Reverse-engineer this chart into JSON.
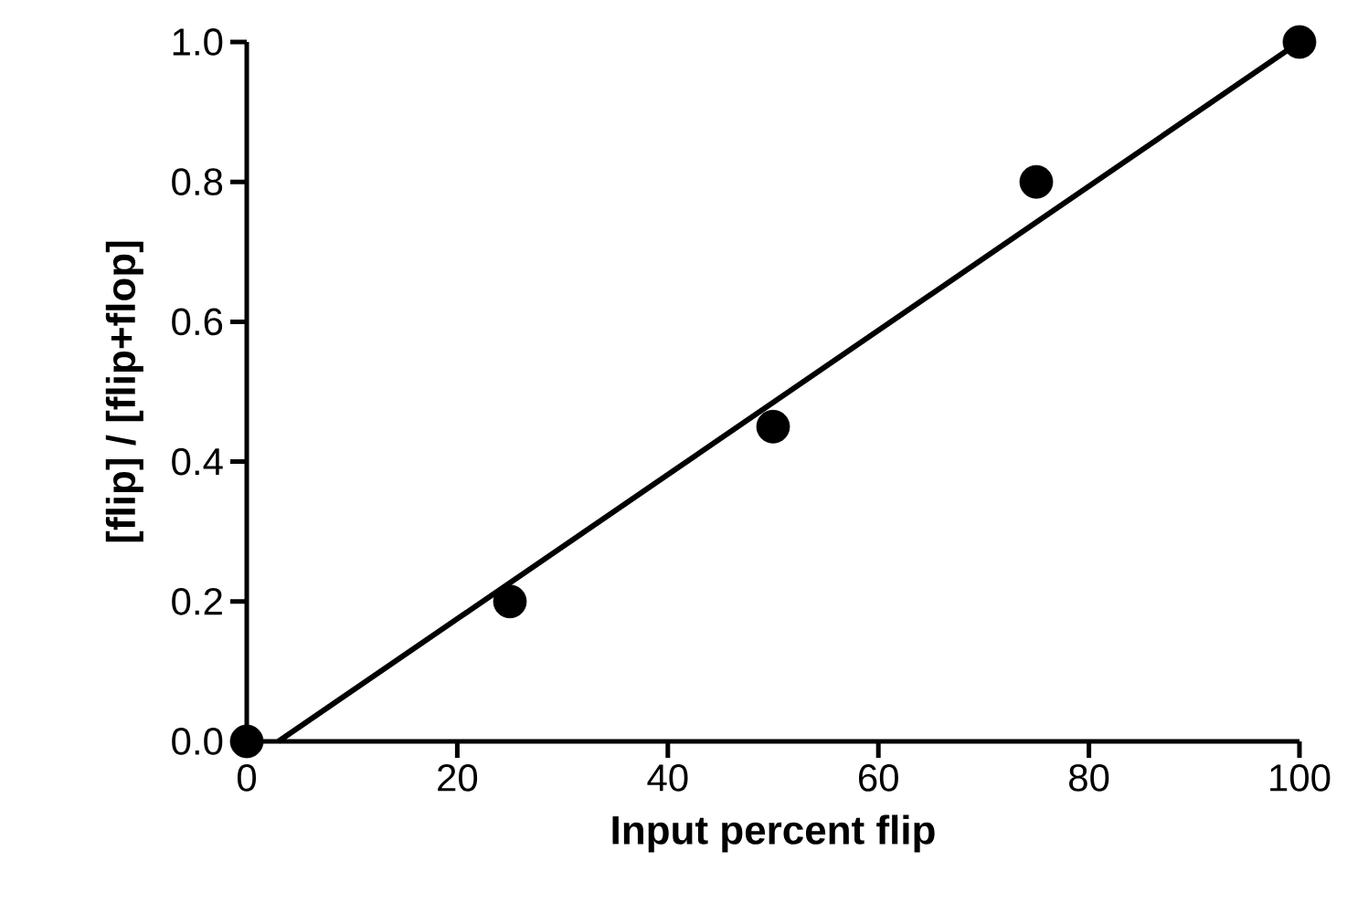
{
  "chart_data": {
    "type": "scatter",
    "xlabel": "Input percent flip",
    "ylabel": "[flip] / [flip+flop]",
    "xlim": [
      0,
      100
    ],
    "ylim": [
      0,
      1
    ],
    "xticks": [
      0,
      20,
      40,
      60,
      80,
      100
    ],
    "yticks": [
      {
        "value": 0,
        "label": "0.0"
      },
      {
        "value": 0.2,
        "label": "0.2"
      },
      {
        "value": 0.4,
        "label": "0.4"
      },
      {
        "value": 0.6,
        "label": "0.6"
      },
      {
        "value": 0.8,
        "label": "0.8"
      },
      {
        "value": 1,
        "label": "1.0"
      }
    ],
    "series": [
      {
        "color": "#000000",
        "marker": "circle",
        "x": [
          0,
          25,
          50,
          75,
          100
        ],
        "values": [
          0,
          0.2,
          0.45,
          0.8,
          1.0
        ]
      },
      {
        "type": "line",
        "color": "#000000",
        "marker": "none",
        "line_style": "solid",
        "x": [
          3,
          100
        ],
        "values": [
          0,
          1.0
        ]
      }
    ]
  }
}
